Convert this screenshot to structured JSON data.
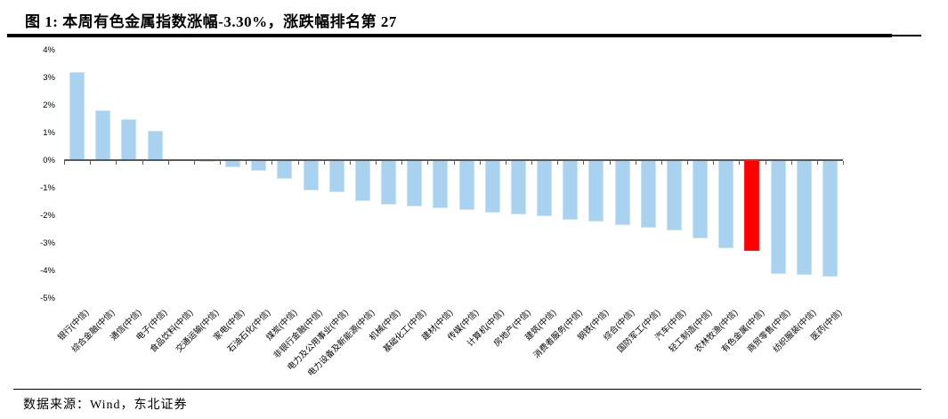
{
  "title": "图 1: 本周有色金属指数涨幅-3.30%，涨跌幅排名第 27",
  "source_note": "数据来源：Wind，东北证券",
  "colors": {
    "bar": "#A9D2F1",
    "bar_border": "#C9E3F6",
    "highlight": "#FF0000",
    "axis": "#595959",
    "text": "#000000",
    "rule": "#000000"
  },
  "chart_data": {
    "type": "bar",
    "title": "图 1: 本周有色金属指数涨幅-3.30%，涨跌幅排名第 27",
    "xlabel": "",
    "ylabel": "",
    "ylim": [
      -5,
      4
    ],
    "yticks": [
      4,
      3,
      2,
      1,
      0,
      -1,
      -2,
      -3,
      -4,
      -5
    ],
    "ytick_suffix": "%",
    "grid": false,
    "legend": false,
    "highlight_index": 26,
    "highlight_category": "有色金属(中信)",
    "highlight_value": -3.3,
    "categories": [
      "银行(中信)",
      "综合金融(中信)",
      "通信(中信)",
      "电子(中信)",
      "食品饮料(中信)",
      "交通运输(中信)",
      "家电(中信)",
      "石油石化(中信)",
      "煤炭(中信)",
      "非银行金融(中信)",
      "电力及公用事业(中信)",
      "电力设备及新能源(中信)",
      "机械(中信)",
      "基础化工(中信)",
      "建材(中信)",
      "传媒(中信)",
      "计算机(中信)",
      "房地产(中信)",
      "建筑(中信)",
      "消费者服务(中信)",
      "钢铁(中信)",
      "综合(中信)",
      "国防军工(中信)",
      "汽车(中信)",
      "轻工制造(中信)",
      "农林牧渔(中信)",
      "有色金属(中信)",
      "商贸零售(中信)",
      "纺织服装(中信)",
      "医药(中信)"
    ],
    "values": [
      3.18,
      1.8,
      1.48,
      1.07,
      0.0,
      -0.06,
      -0.27,
      -0.38,
      -0.69,
      -1.1,
      -1.15,
      -1.47,
      -1.62,
      -1.68,
      -1.73,
      -1.82,
      -1.9,
      -1.96,
      -2.02,
      -2.16,
      -2.24,
      -2.35,
      -2.45,
      -2.56,
      -2.85,
      -3.2,
      -3.3,
      -4.13,
      -4.17,
      -4.23
    ]
  }
}
